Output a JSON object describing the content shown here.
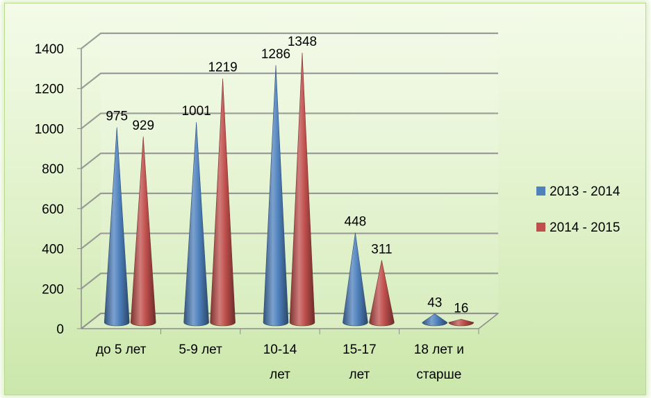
{
  "chart_data": {
    "type": "bar",
    "style": "3d-cone",
    "categories": [
      [
        "до 5 лет"
      ],
      [
        "5-9 лет"
      ],
      [
        "10-14",
        "лет"
      ],
      [
        "15-17",
        "лет"
      ],
      [
        "18 лет и",
        "старше"
      ]
    ],
    "series": [
      {
        "name": "2013 - 2014",
        "color": "#4f81bd",
        "values": [
          975,
          1001,
          1286,
          448,
          43
        ]
      },
      {
        "name": "2014 - 2015",
        "color": "#c0504d",
        "values": [
          929,
          1219,
          1348,
          311,
          16
        ]
      }
    ],
    "yticks": [
      "0",
      "200",
      "400",
      "600",
      "800",
      "1000",
      "1200",
      "1400"
    ],
    "ylim": [
      0,
      1400
    ],
    "grid": true,
    "legend": "right",
    "title": "",
    "xlabel": "",
    "ylabel": ""
  }
}
